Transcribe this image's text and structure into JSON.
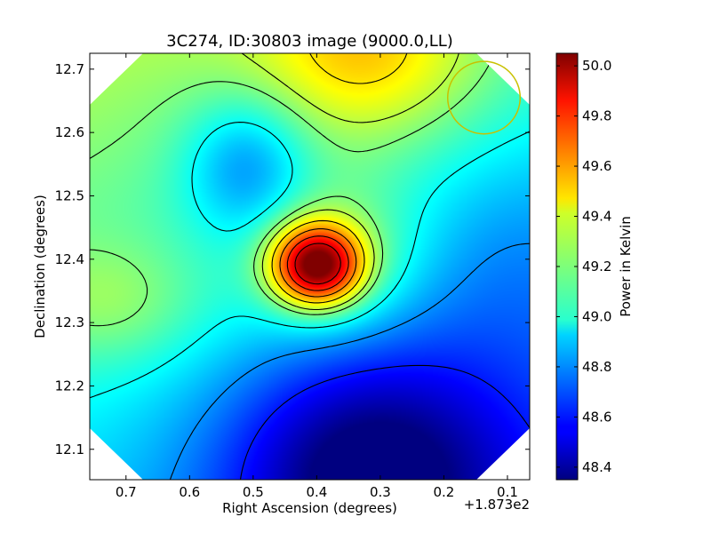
{
  "chart_data": {
    "type": "heatmap",
    "title": "3C274, ID:30803 image (9000.0,LL)",
    "xlabel": "Right Ascension (degrees)",
    "ylabel": "Declination (degrees)",
    "x_offset_label": "+1.873e2",
    "x_ticks": [
      {
        "value": 0.7,
        "label": "0.7"
      },
      {
        "value": 0.6,
        "label": "0.6"
      },
      {
        "value": 0.5,
        "label": "0.5"
      },
      {
        "value": 0.4,
        "label": "0.4"
      },
      {
        "value": 0.3,
        "label": "0.3"
      },
      {
        "value": 0.2,
        "label": "0.2"
      },
      {
        "value": 0.1,
        "label": "0.1"
      }
    ],
    "y_ticks": [
      {
        "value": 12.1,
        "label": "12.1"
      },
      {
        "value": 12.2,
        "label": "12.2"
      },
      {
        "value": 12.3,
        "label": "12.3"
      },
      {
        "value": 12.4,
        "label": "12.4"
      },
      {
        "value": 12.5,
        "label": "12.5"
      },
      {
        "value": 12.6,
        "label": "12.6"
      },
      {
        "value": 12.7,
        "label": "12.7"
      }
    ],
    "xlim": [
      0.757,
      0.065
    ],
    "ylim": [
      12.052,
      12.725
    ],
    "colorbar": {
      "label": "Power in Kelvin",
      "range": [
        48.35,
        50.05
      ],
      "colormap": "jet",
      "ticks": [
        {
          "value": 48.4,
          "label": "48.4"
        },
        {
          "value": 48.6,
          "label": "48.6"
        },
        {
          "value": 48.8,
          "label": "48.8"
        },
        {
          "value": 49.0,
          "label": "49.0"
        },
        {
          "value": 49.2,
          "label": "49.2"
        },
        {
          "value": 49.4,
          "label": "49.4"
        },
        {
          "value": 49.6,
          "label": "49.6"
        },
        {
          "value": 49.8,
          "label": "49.8"
        },
        {
          "value": 50.0,
          "label": "50.0"
        }
      ]
    },
    "peak": {
      "ra": 0.4,
      "dec": 12.39,
      "value": 50.0
    },
    "minimum": {
      "ra": 0.32,
      "dec": 12.07,
      "value": 48.37
    },
    "beam_circle": {
      "ra": 0.137,
      "dec": 12.655,
      "radius_deg": 0.057,
      "color": "#c8c000"
    },
    "contour_levels": [
      48.6,
      48.8,
      49.0,
      49.2,
      49.3,
      49.45,
      49.6,
      49.75,
      49.9
    ],
    "grid": false
  }
}
